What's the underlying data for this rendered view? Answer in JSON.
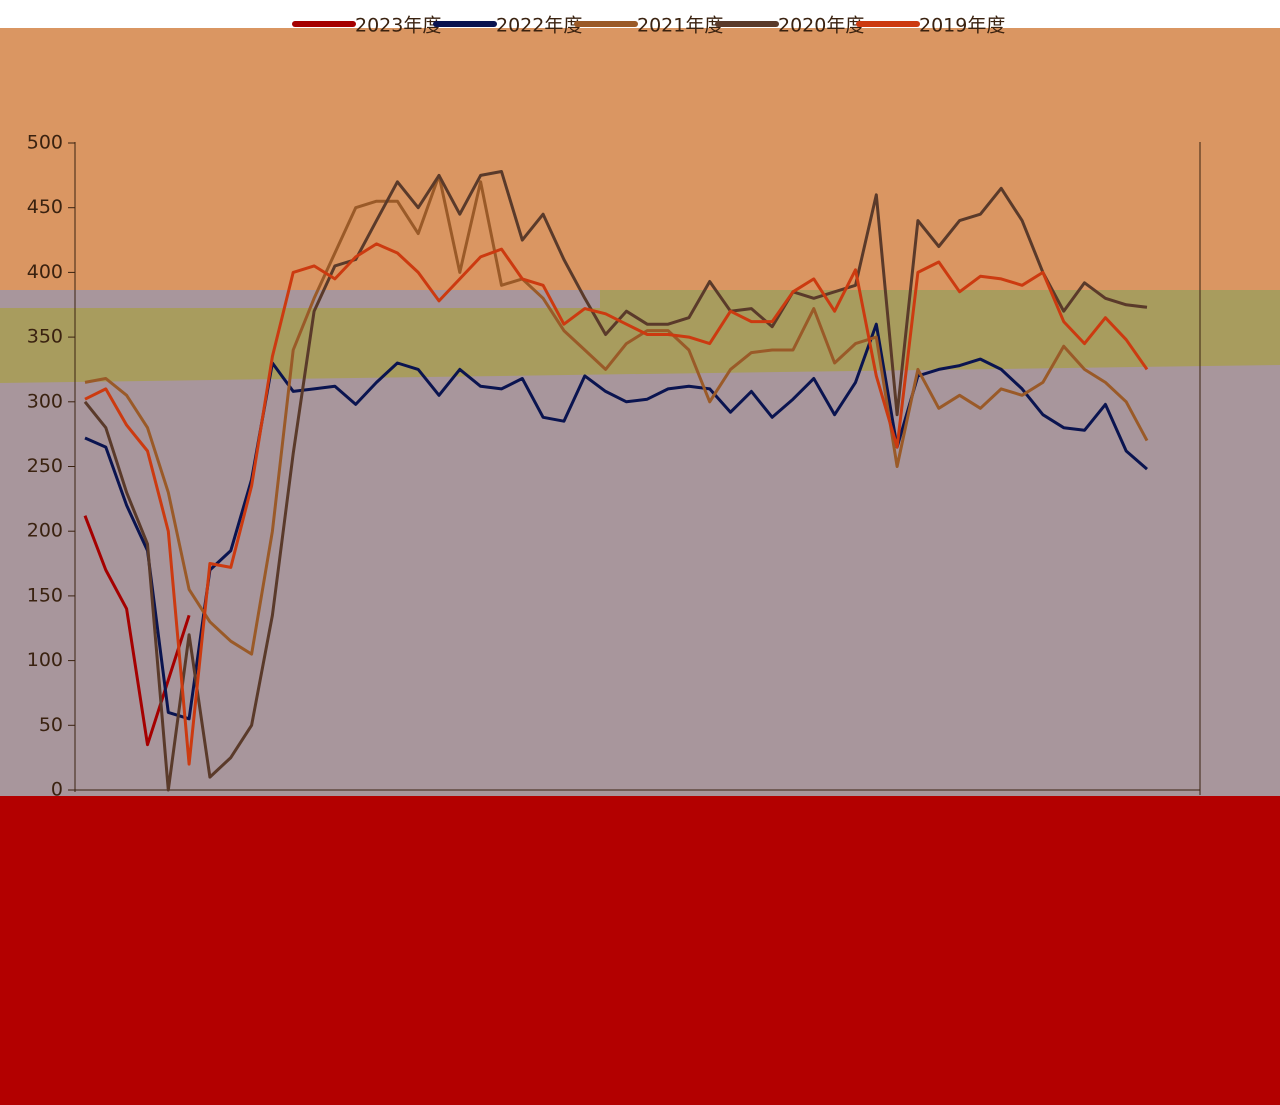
{
  "chart_data": {
    "type": "line",
    "categories": [
      null,
      null,
      null,
      null,
      null,
      null,
      null,
      null,
      null,
      null,
      null,
      null,
      null,
      null,
      null,
      null,
      null,
      null,
      null,
      null,
      null,
      null,
      null,
      null,
      null,
      null,
      null,
      null,
      null,
      null,
      null,
      null,
      null,
      null,
      null,
      null,
      null,
      null,
      null,
      null,
      null,
      null,
      null,
      null,
      null,
      null,
      null,
      null,
      null,
      null,
      null,
      null
    ],
    "ylim": [
      0,
      500
    ],
    "yticks": [
      0,
      50,
      100,
      150,
      200,
      250,
      300,
      350,
      400,
      450,
      500
    ],
    "series": [
      {
        "name": "2023年度",
        "color": "#a50000",
        "values": [
          212,
          170,
          140,
          35,
          85,
          135,
          null,
          null,
          null,
          null,
          null,
          null,
          null,
          null,
          null,
          null,
          null,
          null,
          null,
          null,
          null,
          null,
          null,
          null,
          null,
          null,
          null,
          null,
          null,
          null,
          null,
          null,
          null,
          null,
          null,
          null,
          null,
          null,
          null,
          null,
          null,
          null,
          null,
          null,
          null,
          null,
          null,
          null,
          null,
          null,
          null,
          null
        ]
      },
      {
        "name": "2022年度",
        "color": "#0a1450",
        "values": [
          272,
          265,
          220,
          185,
          60,
          55,
          170,
          185,
          240,
          330,
          308,
          310,
          312,
          298,
          315,
          330,
          325,
          305,
          325,
          312,
          310,
          318,
          288,
          285,
          320,
          308,
          300,
          302,
          310,
          312,
          310,
          292,
          308,
          288,
          302,
          318,
          290,
          315,
          360,
          265,
          320,
          325,
          328,
          333,
          325,
          310,
          290,
          280,
          278,
          298,
          262,
          248
        ]
      },
      {
        "name": "2021年度",
        "color": "#9a5a28",
        "values": [
          315,
          318,
          305,
          280,
          230,
          155,
          130,
          115,
          105,
          200,
          340,
          380,
          415,
          450,
          455,
          455,
          430,
          475,
          400,
          470,
          390,
          395,
          380,
          355,
          340,
          325,
          345,
          355,
          355,
          340,
          300,
          325,
          338,
          340,
          340,
          372,
          330,
          345,
          350,
          250,
          325,
          295,
          305,
          295,
          310,
          305,
          315,
          343,
          325,
          315,
          300,
          270
        ]
      },
      {
        "name": "2020年度",
        "color": "#5a3a2a",
        "values": [
          300,
          280,
          230,
          190,
          0,
          120,
          10,
          25,
          50,
          135,
          260,
          370,
          405,
          410,
          440,
          470,
          450,
          475,
          445,
          475,
          478,
          425,
          445,
          410,
          380,
          352,
          370,
          360,
          360,
          365,
          393,
          370,
          372,
          358,
          385,
          380,
          385,
          390,
          460,
          290,
          440,
          420,
          440,
          445,
          465,
          440,
          400,
          370,
          392,
          380,
          375,
          373
        ]
      },
      {
        "name": "2019年度",
        "color": "#cc3a10",
        "values": [
          302,
          310,
          282,
          262,
          200,
          20,
          175,
          172,
          235,
          335,
          400,
          405,
          395,
          412,
          422,
          415,
          400,
          378,
          395,
          412,
          418,
          395,
          390,
          360,
          372,
          368,
          360,
          352,
          352,
          350,
          345,
          370,
          362,
          362,
          385,
          395,
          370,
          402,
          320,
          265,
          400,
          408,
          385,
          397,
          395,
          390,
          400,
          362,
          345,
          365,
          348,
          325
        ]
      }
    ]
  }
}
